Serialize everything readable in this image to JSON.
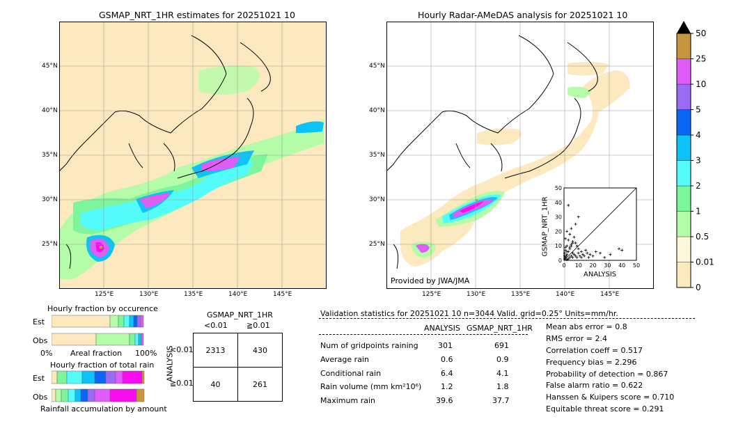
{
  "map_left": {
    "title": "GSMAP_NRT_1HR estimates for 20251021 10",
    "lat_labels": [
      "45°N",
      "40°N",
      "35°N",
      "30°N",
      "25°N"
    ],
    "lon_labels": [
      "125°E",
      "130°E",
      "135°E",
      "140°E",
      "145°E"
    ]
  },
  "map_right": {
    "title": "Hourly Radar-AMeDAS analysis for 20251021 10",
    "lat_labels": [
      "45°N",
      "40°N",
      "35°N",
      "30°N",
      "25°N"
    ],
    "lon_labels": [
      "125°E",
      "130°E",
      "135°E",
      "140°E",
      "145°E"
    ],
    "credit": "Provided by JWA/JMA"
  },
  "colorbar": {
    "ticks": [
      "0",
      "0.01",
      "0.5",
      "1",
      "2",
      "3",
      "4",
      "5",
      "10",
      "25",
      "50"
    ],
    "colors": [
      "#fde9c0",
      "#fff8dc",
      "#b4fca8",
      "#7df59a",
      "#54fbfb",
      "#0cc2f6",
      "#0a66f4",
      "#9a6cf4",
      "#e05cf6",
      "#f70df0",
      "#c8963e"
    ]
  },
  "scatter": {
    "xlabel": "ANALYSIS",
    "ylabel": "GSMAP_NRT_1HR",
    "ticks": [
      "0",
      "10",
      "20",
      "30",
      "40",
      "50"
    ]
  },
  "fraction_occurrence": {
    "title": "Hourly fraction by occurence",
    "row_labels": [
      "Est",
      "Obs"
    ],
    "axis_left": "0%",
    "axis_mid": "Areal fraction",
    "axis_right": "100%"
  },
  "fraction_rain": {
    "title": "Hourly fraction of total rain",
    "row_labels": [
      "Est",
      "Obs"
    ],
    "footer": "Rainfall accumulation by amount"
  },
  "contingency": {
    "title": "GSMAP_NRT_1HR",
    "col_labels": [
      "<0.01",
      "≧0.01"
    ],
    "row_labels": [
      "<0.01",
      "≧0.01"
    ],
    "side_label": "ANALYSIS",
    "cells": [
      "2313",
      "430",
      "40",
      "261"
    ]
  },
  "validation": {
    "header": "Validation statistics for 20251021 10  n=3044 Valid. grid=0.25° Units=mm/hr.",
    "col_analysis": "ANALYSIS",
    "col_gsmap": "GSMAP_NRT_1HR",
    "rows": [
      {
        "label": "Num of gridpoints raining",
        "analysis": "301",
        "gsmap": "691"
      },
      {
        "label": "Average rain",
        "analysis": "0.6",
        "gsmap": "0.9"
      },
      {
        "label": "Conditional rain",
        "analysis": "6.4",
        "gsmap": "4.1"
      },
      {
        "label": "Rain volume (mm km²10⁶)",
        "analysis": "1.2",
        "gsmap": "1.8"
      },
      {
        "label": "Maximum rain",
        "analysis": "39.6",
        "gsmap": "37.7"
      }
    ],
    "scores": [
      "Mean abs error =    0.8",
      "RMS error =    2.4",
      "Correlation coeff =  0.517",
      "Frequency bias =  2.296",
      "Probability of detection =  0.867",
      "False alarm ratio =  0.622",
      "Hanssen & Kuipers score =  0.710",
      "Equitable threat score =  0.291"
    ]
  },
  "chart_data": [
    {
      "type": "heatmap",
      "title": "GSMAP_NRT_1HR estimates for 20251021 10",
      "xlabel": "",
      "ylabel": "",
      "xlim": [
        120,
        150
      ],
      "ylim": [
        20,
        50
      ]
    },
    {
      "type": "heatmap",
      "title": "Hourly Radar-AMeDAS analysis for 20251021 10",
      "xlabel": "",
      "ylabel": "",
      "xlim": [
        120,
        150
      ],
      "ylim": [
        20,
        50
      ]
    },
    {
      "type": "scatter",
      "xlabel": "ANALYSIS",
      "ylabel": "GSMAP_NRT_1HR",
      "xlim": [
        0,
        50
      ],
      "ylim": [
        0,
        50
      ],
      "x": [
        0.5,
        1,
        1.5,
        2,
        2,
        3,
        3,
        4,
        4,
        5,
        5,
        6,
        6,
        7,
        8,
        8,
        9,
        10,
        10,
        11,
        12,
        12,
        13,
        14,
        15,
        16,
        17,
        18,
        20,
        22,
        25,
        28,
        32,
        38,
        40,
        1,
        2,
        3,
        4,
        5,
        6,
        7,
        8,
        9,
        10,
        3,
        4,
        5,
        6,
        2,
        1,
        0.5,
        0.5,
        1,
        2
      ],
      "y": [
        1,
        2,
        3,
        0.5,
        4,
        1,
        6,
        2,
        8,
        3,
        10,
        2,
        5,
        4,
        12,
        3,
        2,
        5,
        8,
        3,
        6,
        2,
        4,
        3,
        7,
        5,
        2,
        4,
        3,
        6,
        5,
        2,
        4,
        8,
        7,
        15,
        20,
        14,
        18,
        22,
        12,
        16,
        25,
        10,
        30,
        38,
        9,
        11,
        13,
        6,
        9,
        5,
        3,
        7,
        10
      ]
    }
  ]
}
